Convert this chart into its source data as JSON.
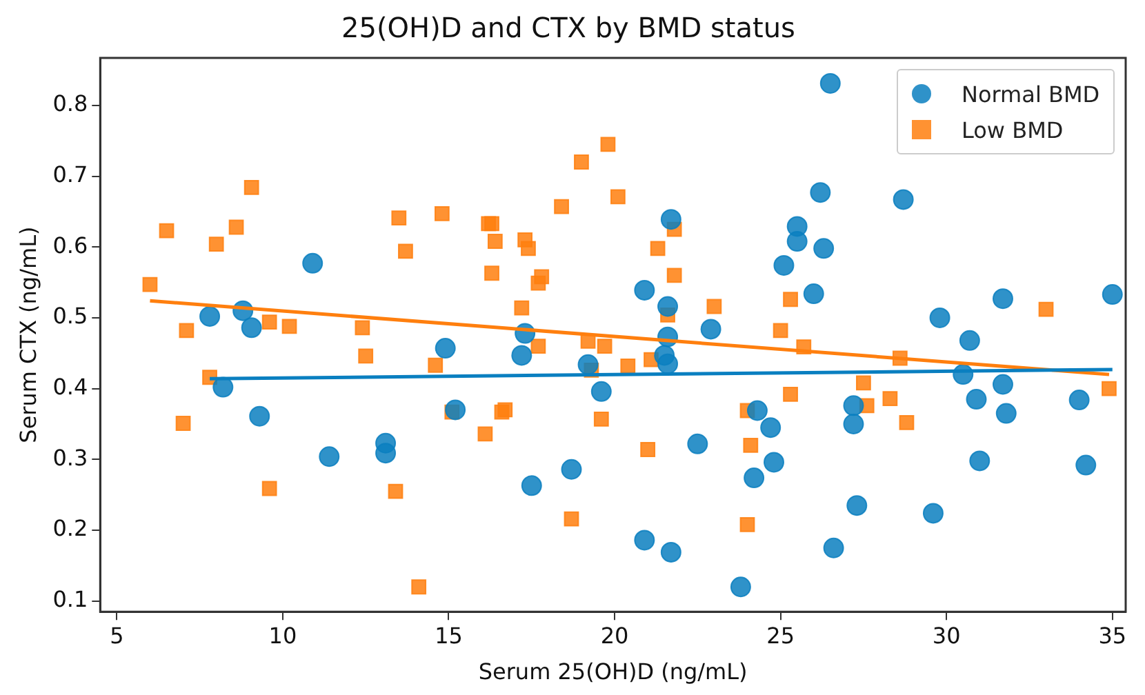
{
  "chart_data": {
    "type": "scatter",
    "title": "25(OH)D and CTX by BMD status",
    "xlabel": "Serum 25(OH)D (ng/mL)",
    "ylabel": "Serum CTX (ng/mL)",
    "xlim": [
      4.5,
      35.4
    ],
    "ylim": [
      0.085,
      0.867
    ],
    "xticks": [
      5,
      10,
      15,
      20,
      25,
      30,
      35
    ],
    "yticks": [
      0.1,
      0.2,
      0.3,
      0.4,
      0.5,
      0.6,
      0.7,
      0.8
    ],
    "grid": false,
    "legend": "top right",
    "series": [
      {
        "name": "Normal BMD",
        "color": "#0a7fc0",
        "marker": "circle",
        "x": [
          7.8,
          8.2,
          8.8,
          9.06,
          9.3,
          10.9,
          11.4,
          13.1,
          13.1,
          14.9,
          15.2,
          17.2,
          17.3,
          17.5,
          18.7,
          19.2,
          19.6,
          20.9,
          20.9,
          21.6,
          21.6,
          21.5,
          21.6,
          21.7,
          21.7,
          22.5,
          22.9,
          23.8,
          24.2,
          24.3,
          24.7,
          24.8,
          25.1,
          25.5,
          25.5,
          26.0,
          26.2,
          26.3,
          26.5,
          26.6,
          27.2,
          27.2,
          27.3,
          28.7,
          29.6,
          29.8,
          30.5,
          30.7,
          30.9,
          31.0,
          31.7,
          31.7,
          31.8,
          34.0,
          34.2,
          35.0
        ],
        "values": [
          0.502,
          0.402,
          0.51,
          0.486,
          0.361,
          0.577,
          0.304,
          0.323,
          0.309,
          0.457,
          0.37,
          0.447,
          0.478,
          0.263,
          0.286,
          0.434,
          0.396,
          0.539,
          0.186,
          0.516,
          0.473,
          0.447,
          0.435,
          0.639,
          0.169,
          0.322,
          0.484,
          0.12,
          0.274,
          0.369,
          0.345,
          0.296,
          0.574,
          0.629,
          0.608,
          0.534,
          0.677,
          0.598,
          0.831,
          0.175,
          0.376,
          0.35,
          0.235,
          0.667,
          0.224,
          0.5,
          0.42,
          0.468,
          0.385,
          0.298,
          0.527,
          0.406,
          0.365,
          0.384,
          0.292,
          0.533
        ]
      },
      {
        "name": "Low BMD",
        "color": "#ff7f0e",
        "marker": "square",
        "x": [
          6.0,
          6.5,
          7.1,
          7.8,
          7.0,
          8.0,
          8.6,
          9.06,
          9.6,
          9.6,
          10.2,
          12.4,
          12.5,
          13.4,
          13.5,
          13.7,
          14.1,
          14.6,
          14.8,
          15.1,
          16.1,
          16.2,
          16.3,
          16.4,
          16.3,
          16.6,
          16.7,
          17.2,
          17.3,
          17.4,
          17.7,
          17.8,
          17.7,
          18.4,
          18.7,
          19.0,
          19.2,
          19.3,
          19.6,
          19.7,
          19.8,
          20.1,
          20.4,
          21.0,
          21.1,
          21.3,
          21.6,
          21.8,
          21.8,
          23.0,
          24.0,
          24.0,
          24.1,
          25.0,
          25.3,
          25.3,
          25.7,
          27.5,
          27.6,
          28.3,
          28.6,
          28.8,
          33.0,
          34.9
        ],
        "values": [
          0.547,
          0.623,
          0.482,
          0.416,
          0.351,
          0.604,
          0.628,
          0.684,
          0.494,
          0.259,
          0.488,
          0.486,
          0.446,
          0.255,
          0.641,
          0.594,
          0.12,
          0.433,
          0.647,
          0.367,
          0.336,
          0.633,
          0.633,
          0.608,
          0.563,
          0.367,
          0.37,
          0.514,
          0.61,
          0.598,
          0.549,
          0.558,
          0.46,
          0.657,
          0.216,
          0.72,
          0.467,
          0.426,
          0.357,
          0.46,
          0.745,
          0.671,
          0.432,
          0.314,
          0.441,
          0.598,
          0.504,
          0.625,
          0.56,
          0.516,
          0.369,
          0.208,
          0.32,
          0.482,
          0.526,
          0.392,
          0.459,
          0.408,
          0.376,
          0.386,
          0.443,
          0.352,
          0.512,
          0.4
        ]
      },
      {
        "type": "line",
        "color": "#0a7fc0",
        "x": [
          7.8,
          35.0
        ],
        "values": [
          0.414,
          0.427
        ]
      },
      {
        "type": "line",
        "color": "#ff7f0e",
        "x": [
          6.0,
          34.9
        ],
        "values": [
          0.524,
          0.42
        ]
      }
    ]
  }
}
